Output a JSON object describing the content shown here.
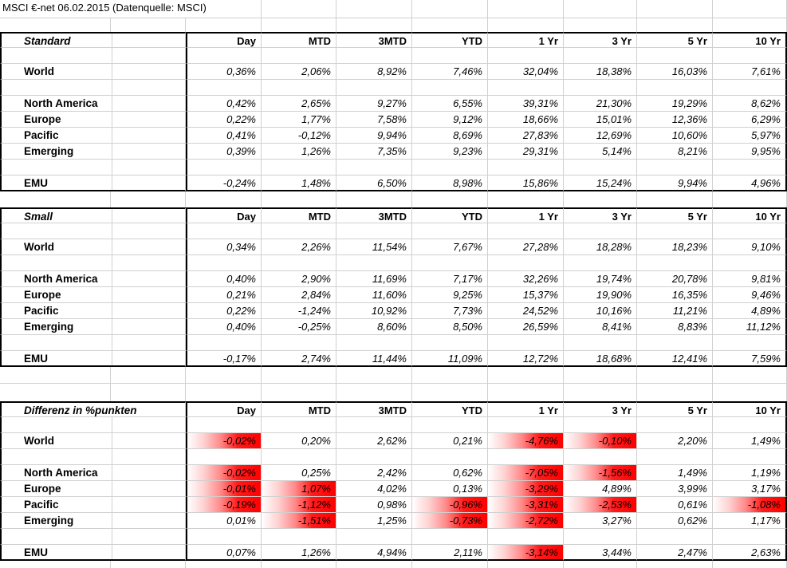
{
  "sheet": {
    "title": "MSCI €-net 06.02.2015 (Datenquelle: MSCI)",
    "columns": [
      "Day",
      "MTD",
      "3MTD",
      "YTD",
      "1 Yr",
      "3 Yr",
      "5 Yr",
      "10 Yr"
    ],
    "colors": {
      "highlight_red": "#FF0000",
      "gridline": "#D0D0D0",
      "table_border": "#000000",
      "background": "#FFFFFF"
    },
    "tables": [
      {
        "name": "Standard",
        "grid_in_title": true,
        "rows": [
          {
            "label": "World",
            "values": [
              "0,36%",
              "2,06%",
              "8,92%",
              "7,46%",
              "32,04%",
              "18,38%",
              "16,03%",
              "7,61%"
            ]
          },
          {
            "label": "North America",
            "values": [
              "0,42%",
              "2,65%",
              "9,27%",
              "6,55%",
              "39,31%",
              "21,30%",
              "19,29%",
              "8,62%"
            ]
          },
          {
            "label": "Europe",
            "values": [
              "0,22%",
              "1,77%",
              "7,58%",
              "9,12%",
              "18,66%",
              "15,01%",
              "12,36%",
              "6,29%"
            ]
          },
          {
            "label": "Pacific",
            "values": [
              "0,41%",
              "-0,12%",
              "9,94%",
              "8,69%",
              "27,83%",
              "12,69%",
              "10,60%",
              "5,97%"
            ]
          },
          {
            "label": "Emerging",
            "values": [
              "0,39%",
              "1,26%",
              "7,35%",
              "9,23%",
              "29,31%",
              "5,14%",
              "8,21%",
              "9,95%"
            ]
          },
          {
            "label": "EMU",
            "values": [
              "-0,24%",
              "1,48%",
              "6,50%",
              "8,98%",
              "15,86%",
              "15,24%",
              "9,94%",
              "4,96%"
            ]
          }
        ]
      },
      {
        "name": "Small",
        "grid_in_title": true,
        "rows": [
          {
            "label": "World",
            "values": [
              "0,34%",
              "2,26%",
              "11,54%",
              "7,67%",
              "27,28%",
              "18,28%",
              "18,23%",
              "9,10%"
            ]
          },
          {
            "label": "North America",
            "values": [
              "0,40%",
              "2,90%",
              "11,69%",
              "7,17%",
              "32,26%",
              "19,74%",
              "20,78%",
              "9,81%"
            ]
          },
          {
            "label": "Europe",
            "values": [
              "0,21%",
              "2,84%",
              "11,60%",
              "9,25%",
              "15,37%",
              "19,90%",
              "16,35%",
              "9,46%"
            ]
          },
          {
            "label": "Pacific",
            "values": [
              "0,22%",
              "-1,24%",
              "10,92%",
              "7,73%",
              "24,52%",
              "10,16%",
              "11,21%",
              "4,89%"
            ]
          },
          {
            "label": "Emerging",
            "values": [
              "0,40%",
              "-0,25%",
              "8,60%",
              "8,50%",
              "26,59%",
              "8,41%",
              "8,83%",
              "11,12%"
            ]
          },
          {
            "label": "EMU",
            "values": [
              "-0,17%",
              "2,74%",
              "11,44%",
              "11,09%",
              "12,72%",
              "18,68%",
              "12,41%",
              "7,59%"
            ]
          }
        ]
      },
      {
        "name": "Differenz in %punkten",
        "grid_in_title": false,
        "rows": [
          {
            "label": "World",
            "values": [
              "-0,02%",
              "0,20%",
              "2,62%",
              "0,21%",
              "-4,76%",
              "-0,10%",
              "2,20%",
              "1,49%"
            ],
            "hl": [
              1,
              0,
              0,
              0,
              1,
              1,
              0,
              0
            ]
          },
          {
            "label": "North America",
            "values": [
              "-0,02%",
              "0,25%",
              "2,42%",
              "0,62%",
              "-7,05%",
              "-1,56%",
              "1,49%",
              "1,19%"
            ],
            "hl": [
              1,
              0,
              0,
              0,
              1,
              1,
              0,
              0
            ]
          },
          {
            "label": "Europe",
            "values": [
              "-0,01%",
              "1,07%",
              "4,02%",
              "0,13%",
              "-3,29%",
              "4,89%",
              "3,99%",
              "3,17%"
            ],
            "hl": [
              1,
              1,
              0,
              0,
              1,
              0,
              0,
              0
            ]
          },
          {
            "label": "Pacific",
            "values": [
              "-0,19%",
              "-1,12%",
              "0,98%",
              "-0,96%",
              "-3,31%",
              "-2,53%",
              "0,61%",
              "-1,08%"
            ],
            "hl": [
              1,
              1,
              0,
              1,
              1,
              1,
              0,
              1
            ]
          },
          {
            "label": "Emerging",
            "values": [
              "0,01%",
              "-1,51%",
              "1,25%",
              "-0,73%",
              "-2,72%",
              "3,27%",
              "0,62%",
              "1,17%"
            ],
            "hl": [
              0,
              1,
              0,
              1,
              1,
              0,
              0,
              0
            ]
          },
          {
            "label": "EMU",
            "values": [
              "0,07%",
              "1,26%",
              "4,94%",
              "2,11%",
              "-3,14%",
              "3,44%",
              "2,47%",
              "2,63%"
            ],
            "hl": [
              0,
              0,
              0,
              0,
              1,
              0,
              0,
              0
            ]
          }
        ]
      }
    ]
  }
}
